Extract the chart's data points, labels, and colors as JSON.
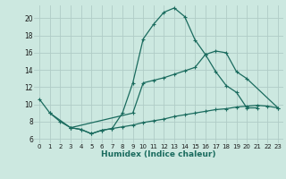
{
  "xlabel": "Humidex (Indice chaleur)",
  "background_color": "#cce8e0",
  "grid_color": "#b0ccc6",
  "line_color": "#1a6b5e",
  "xlim": [
    -0.5,
    23.5
  ],
  "ylim": [
    5.5,
    21.5
  ],
  "yticks": [
    6,
    8,
    10,
    12,
    14,
    16,
    18,
    20
  ],
  "xticks": [
    0,
    1,
    2,
    3,
    4,
    5,
    6,
    7,
    8,
    9,
    10,
    11,
    12,
    13,
    14,
    15,
    16,
    17,
    18,
    19,
    20,
    21,
    22,
    23
  ],
  "line1_x": [
    0,
    1,
    2,
    3,
    4,
    5,
    6,
    7,
    8,
    9,
    10,
    11,
    12,
    13,
    14,
    15,
    16,
    17,
    18,
    19,
    20,
    21
  ],
  "line1_y": [
    10.6,
    9.0,
    8.0,
    7.3,
    7.1,
    6.6,
    7.0,
    7.2,
    9.0,
    12.5,
    17.6,
    19.3,
    20.7,
    21.2,
    20.2,
    17.5,
    15.8,
    13.8,
    12.2,
    11.4,
    9.6,
    9.6
  ],
  "line2_x": [
    1,
    3,
    9,
    10,
    11,
    12,
    13,
    14,
    15,
    16,
    17,
    18,
    19,
    20,
    23
  ],
  "line2_y": [
    9.0,
    7.3,
    9.0,
    12.5,
    12.8,
    13.1,
    13.5,
    13.9,
    14.3,
    15.8,
    16.2,
    16.0,
    13.8,
    13.0,
    9.6
  ],
  "line3_x": [
    3,
    4,
    5,
    6,
    7,
    8,
    9,
    10,
    11,
    12,
    13,
    14,
    15,
    16,
    17,
    18,
    19,
    20,
    21,
    22,
    23
  ],
  "line3_y": [
    7.3,
    7.1,
    6.6,
    7.0,
    7.2,
    7.4,
    7.6,
    7.9,
    8.1,
    8.3,
    8.6,
    8.8,
    9.0,
    9.2,
    9.4,
    9.5,
    9.7,
    9.8,
    9.9,
    9.8,
    9.6
  ]
}
